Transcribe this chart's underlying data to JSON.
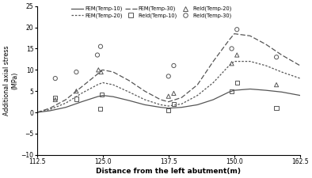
{
  "title": "",
  "xlabel": "Distance from the left abutment(m)",
  "ylabel": "Additional axial stress\n(MPa)",
  "xlim": [
    112.5,
    162.5
  ],
  "ylim": [
    -10,
    25
  ],
  "xticks": [
    112.5,
    125,
    137.5,
    150,
    162.5
  ],
  "yticks": [
    -10,
    -5,
    0,
    5,
    10,
    15,
    20,
    25
  ],
  "fem10_x": [
    112.5,
    115,
    118,
    121,
    124,
    125,
    127,
    130,
    133,
    136,
    137.5,
    140,
    143,
    146,
    149,
    150,
    153,
    156,
    159,
    162.5
  ],
  "fem10_y": [
    0.0,
    0.4,
    1.2,
    2.5,
    3.7,
    4.0,
    3.7,
    2.8,
    1.8,
    1.2,
    1.0,
    1.2,
    1.8,
    3.0,
    4.8,
    5.2,
    5.5,
    5.2,
    4.8,
    4.0
  ],
  "fem20_x": [
    112.5,
    115,
    118,
    121,
    124,
    125,
    127,
    130,
    133,
    136,
    137.5,
    140,
    143,
    146,
    149,
    150,
    153,
    156,
    159,
    162.5
  ],
  "fem20_y": [
    0.0,
    0.7,
    2.2,
    4.5,
    6.5,
    7.0,
    6.5,
    4.8,
    3.0,
    1.8,
    1.5,
    2.0,
    4.0,
    7.0,
    11.0,
    12.0,
    12.0,
    11.0,
    9.5,
    8.0
  ],
  "fem30_x": [
    112.5,
    115,
    118,
    121,
    124,
    125,
    127,
    130,
    133,
    136,
    137.5,
    140,
    143,
    146,
    149,
    150,
    153,
    156,
    159,
    162.5
  ],
  "fem30_y": [
    0.0,
    1.0,
    3.0,
    6.0,
    9.0,
    10.0,
    9.5,
    7.5,
    5.0,
    3.0,
    2.5,
    3.5,
    6.5,
    12.0,
    17.0,
    18.5,
    18.0,
    16.0,
    13.5,
    11.0
  ],
  "field10_x": [
    116,
    120,
    124.5,
    124.8,
    137.5,
    138.5,
    149.5,
    150.5,
    158
  ],
  "field10_y": [
    3.5,
    3.2,
    0.8,
    4.2,
    0.5,
    2.0,
    5.0,
    7.0,
    1.0
  ],
  "field20_x": [
    116,
    120,
    124.2,
    124.7,
    137.5,
    138.5,
    149.5,
    150.5,
    158
  ],
  "field20_y": [
    3.0,
    5.0,
    10.0,
    9.5,
    3.8,
    4.5,
    11.5,
    13.5,
    6.5
  ],
  "field30_x": [
    116,
    120,
    124.0,
    124.6,
    137.5,
    138.5,
    149.5,
    150.5,
    158
  ],
  "field30_y": [
    8.0,
    9.5,
    13.5,
    15.5,
    8.5,
    11.0,
    15.0,
    19.5,
    13.0
  ],
  "color_all": "#555555",
  "background": "#ffffff"
}
